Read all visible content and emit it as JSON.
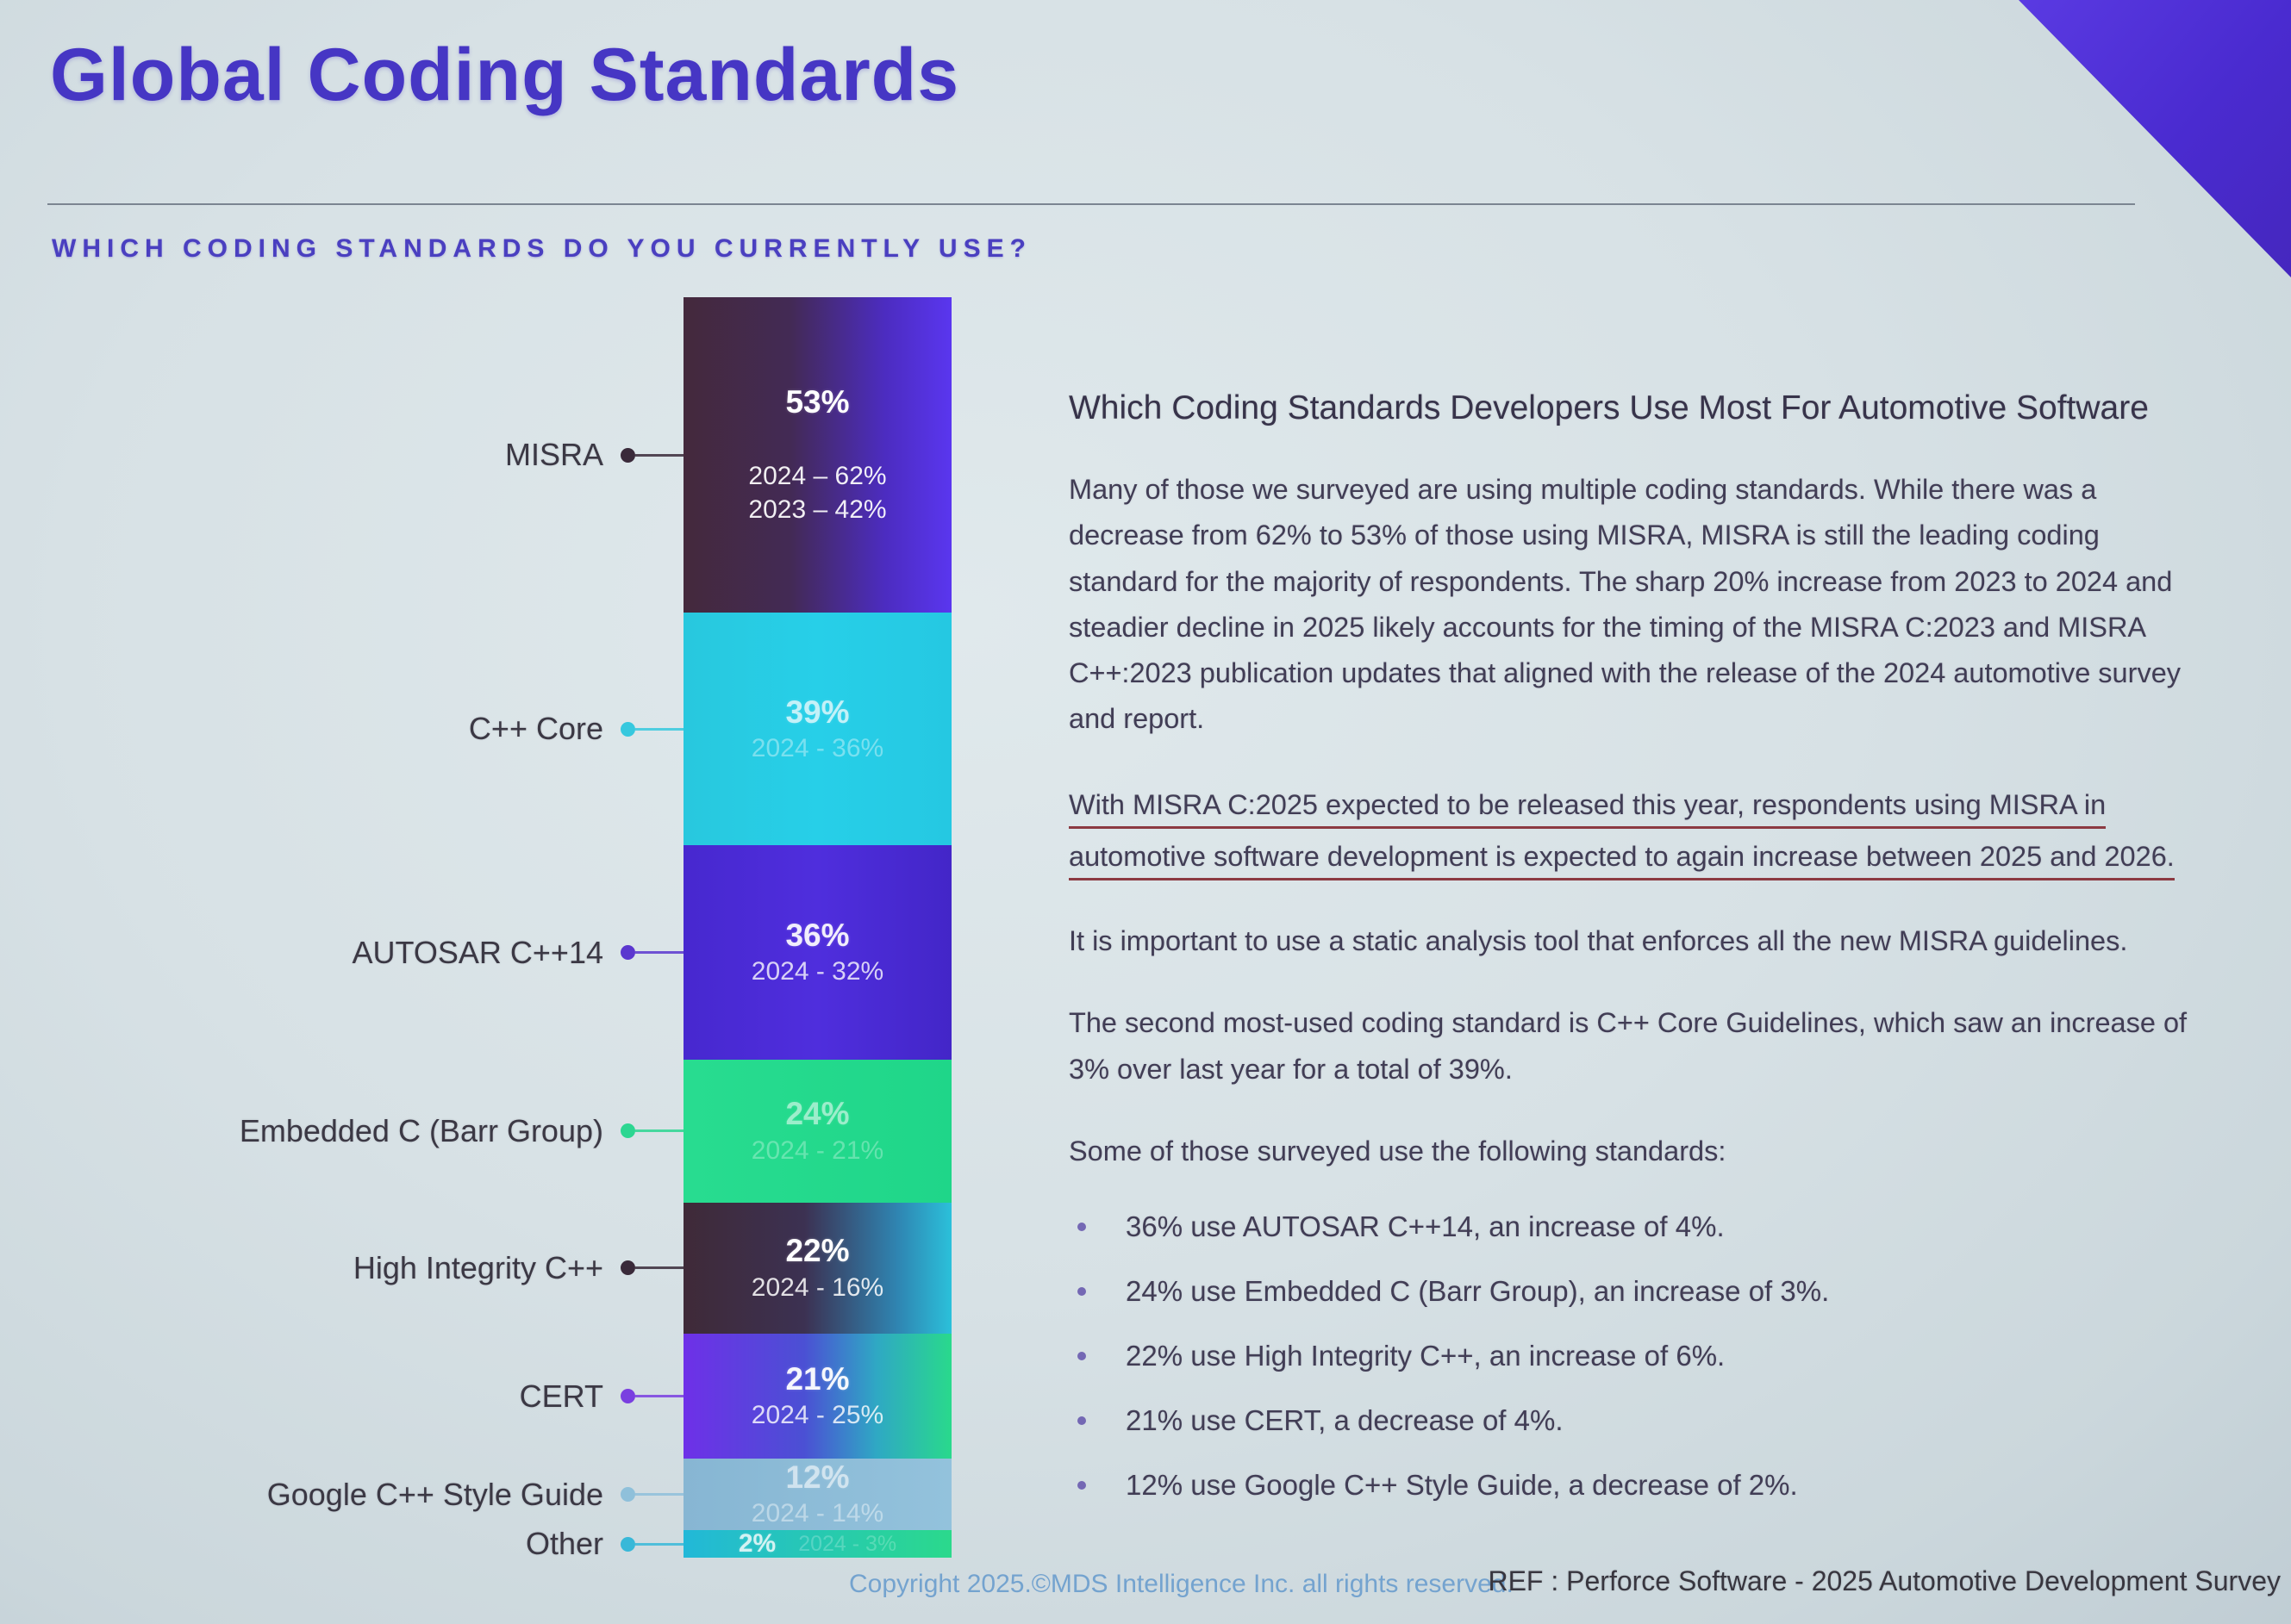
{
  "slide": {
    "title": "Global Coding Standards",
    "question": "WHICH CODING STANDARDS DO YOU CURRENTLY USE?"
  },
  "chart_data": {
    "type": "bar",
    "variant": "single-stacked-column",
    "title": "Which coding standards do you currently use?",
    "unit": "percent",
    "legend": "none",
    "categories": [
      "MISRA",
      "C++ Core",
      "AUTOSAR C++14",
      "Embedded C (Barr Group)",
      "High Integrity C++",
      "CERT",
      "Google C++ Style Guide",
      "Other"
    ],
    "series": [
      {
        "name": "2025",
        "values": [
          53,
          39,
          36,
          24,
          22,
          21,
          12,
          2
        ]
      },
      {
        "name": "2024",
        "values": [
          62,
          36,
          32,
          21,
          16,
          25,
          14,
          3
        ]
      },
      {
        "name": "2023",
        "values": [
          42,
          null,
          null,
          null,
          null,
          null,
          null,
          null
        ]
      }
    ],
    "segments": [
      {
        "id": "misra",
        "label": "MISRA",
        "value": 53,
        "value_label": "53%",
        "sub_labels": [
          "2024 – 62%",
          "2023 – 42%"
        ],
        "value_opacity": 1,
        "sub_opacity": 0.92,
        "gap": true,
        "colors": [
          "#44293c 0%",
          "#432a55 40%",
          "#4c2cc0 75%",
          "#5a36ef 100%"
        ],
        "dot_color": "#3a2a3a"
      },
      {
        "id": "cpp-core",
        "label": "C++ Core",
        "value": 39,
        "value_label": "39%",
        "sub_labels": [
          "2024 - 36%"
        ],
        "value_opacity": 0.72,
        "sub_opacity": 0.38,
        "colors": [
          "#28c8de 0%",
          "#27cfe8 50%",
          "#25c8e2 100%"
        ],
        "dot_color": "#36c8de"
      },
      {
        "id": "autosar",
        "label": "AUTOSAR C++14",
        "value": 36,
        "value_label": "36%",
        "sub_labels": [
          "2024 - 32%"
        ],
        "value_opacity": 0.92,
        "sub_opacity": 0.78,
        "colors": [
          "#4728cf 0%",
          "#4f2edd 50%",
          "#4326c8 100%"
        ],
        "dot_color": "#5b37cf"
      },
      {
        "id": "embedded-c",
        "label": "Embedded C (Barr Group)",
        "value": 24,
        "value_label": "24%",
        "sub_labels": [
          "2024 - 21%"
        ],
        "value_opacity": 0.55,
        "sub_opacity": 0.3,
        "colors": [
          "#28dc90 0%",
          "#1fd689 100%"
        ],
        "dot_color": "#2cd691"
      },
      {
        "id": "high-integrity",
        "label": "High Integrity C++",
        "value": 22,
        "value_label": "22%",
        "sub_labels": [
          "2024 - 16%"
        ],
        "value_opacity": 1,
        "sub_opacity": 0.85,
        "colors": [
          "#3f2a38 0%",
          "#3c3152 45%",
          "#2f85b2 80%",
          "#2bc0da 100%"
        ],
        "dot_color": "#3a2a3a"
      },
      {
        "id": "cert",
        "label": "CERT",
        "value": 21,
        "value_label": "21%",
        "sub_labels": [
          "2024 - 25%"
        ],
        "value_opacity": 0.95,
        "sub_opacity": 0.8,
        "colors": [
          "#6e30e8 0%",
          "#4b50d4 45%",
          "#2fa8c4 72%",
          "#29d98c 100%"
        ],
        "dot_color": "#7a3fe0"
      },
      {
        "id": "google-style",
        "label": "Google C++ Style Guide",
        "value": 12,
        "value_label": "12%",
        "sub_labels": [
          "2024 - 14%"
        ],
        "value_opacity": 0.6,
        "sub_opacity": 0.42,
        "colors": [
          "#87b6d3 0%",
          "#93c2dc 100%"
        ],
        "dot_color": "#8fc0da"
      },
      {
        "id": "other",
        "label": "Other",
        "value": 2,
        "value_label": "2%",
        "sub_labels": [
          "2024 - 3%"
        ],
        "value_opacity": 0.8,
        "sub_opacity": 0.22,
        "inline": true,
        "colors": [
          "#22b8d8 0%",
          "#2bd98c 100%"
        ],
        "dot_color": "#38b8d8"
      }
    ]
  },
  "commentary": {
    "heading": "Which Coding Standards Developers Use Most For Automotive Software",
    "p1": "Many of those we surveyed are using multiple coding standards. While there was a decrease from 62% to 53% of those using MISRA, MISRA is still the leading coding standard for the majority of respondents. The sharp 20% increase from 2023 to 2024 and steadier decline in 2025 likely accounts for the timing of the MISRA C:2023 and MISRA C++:2023 publication updates that aligned with the release of the 2024 automotive survey and report.",
    "underlined": "With MISRA C:2025 expected to be released this year, respondents using MISRA in automotive software development is expected to again increase between 2025 and 2026.",
    "p2": "It is important to use a static analysis tool that enforces all the new MISRA guidelines.",
    "p3": "The second most-used coding standard is C++ Core Guidelines, which saw an increase of 3% over last year for a total of 39%.",
    "bullets_intro": "Some of those surveyed use the following standards:",
    "bullets": [
      "36% use AUTOSAR C++14, an increase of 4%.",
      "24% use Embedded C (Barr Group), an increase of 3%.",
      "22% use High Integrity C++, an increase of 6%.",
      "21% use CERT, a decrease of 4%.",
      "12% use Google C++ Style Guide, a decrease of 2%."
    ]
  },
  "footer": {
    "copyright": "Copyright 2025.©MDS Intelligence Inc. all rights reserved.",
    "reference": "REF : Perforce Software - 2025 Automotive Development Survey"
  },
  "colors": {
    "title": "#4636c4",
    "question": "#4a3fc0",
    "body_text": "#413d55",
    "underline": "#8c3a42",
    "corner_triangle": "#4a2bd0",
    "copyright": "#74a3cf",
    "reference": "#38363f"
  }
}
